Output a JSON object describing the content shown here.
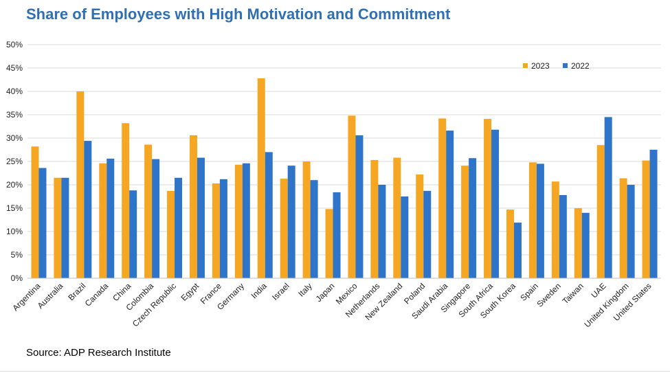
{
  "chart_data": {
    "type": "bar",
    "title": "Share of Employees with High Motivation and Commitment",
    "source": "Source: ADP Research Institute",
    "categories": [
      "Argentina",
      "Australia",
      "Brazil",
      "Canada",
      "China",
      "Colombia",
      "Czech Republic",
      "Egypt",
      "France",
      "Germany",
      "India",
      "Israel",
      "Italy",
      "Japan",
      "Mexico",
      "Netherlands",
      "New Zealand",
      "Poland",
      "Saudi Arabia",
      "Singapore",
      "South Africa",
      "South Korea",
      "Spain",
      "Sweden",
      "Taiwan",
      "UAE",
      "United Kingdom",
      "United States"
    ],
    "series": [
      {
        "name": "2023",
        "color": "#f5a623",
        "values": [
          28.2,
          21.5,
          40.0,
          24.6,
          33.2,
          28.6,
          18.7,
          30.6,
          20.3,
          24.3,
          42.8,
          21.3,
          25.0,
          14.8,
          34.8,
          25.3,
          25.8,
          22.2,
          34.2,
          24.1,
          34.1,
          14.7,
          24.8,
          20.7,
          15.0,
          28.5,
          21.4,
          25.2
        ]
      },
      {
        "name": "2022",
        "color": "#2e75c9",
        "values": [
          23.6,
          21.5,
          29.4,
          25.6,
          18.8,
          25.5,
          21.5,
          25.8,
          21.2,
          24.6,
          27.0,
          24.1,
          21.0,
          18.4,
          30.6,
          20.0,
          17.5,
          18.7,
          31.6,
          25.7,
          31.8,
          11.9,
          24.5,
          17.8,
          14.0,
          34.5,
          20.0,
          27.5
        ]
      }
    ],
    "ylim": [
      0,
      50
    ],
    "yticks": [
      "0%",
      "5%",
      "10%",
      "15%",
      "20%",
      "25%",
      "30%",
      "35%",
      "40%",
      "45%",
      "50%"
    ],
    "grid": true,
    "legend_position": "top-right"
  }
}
